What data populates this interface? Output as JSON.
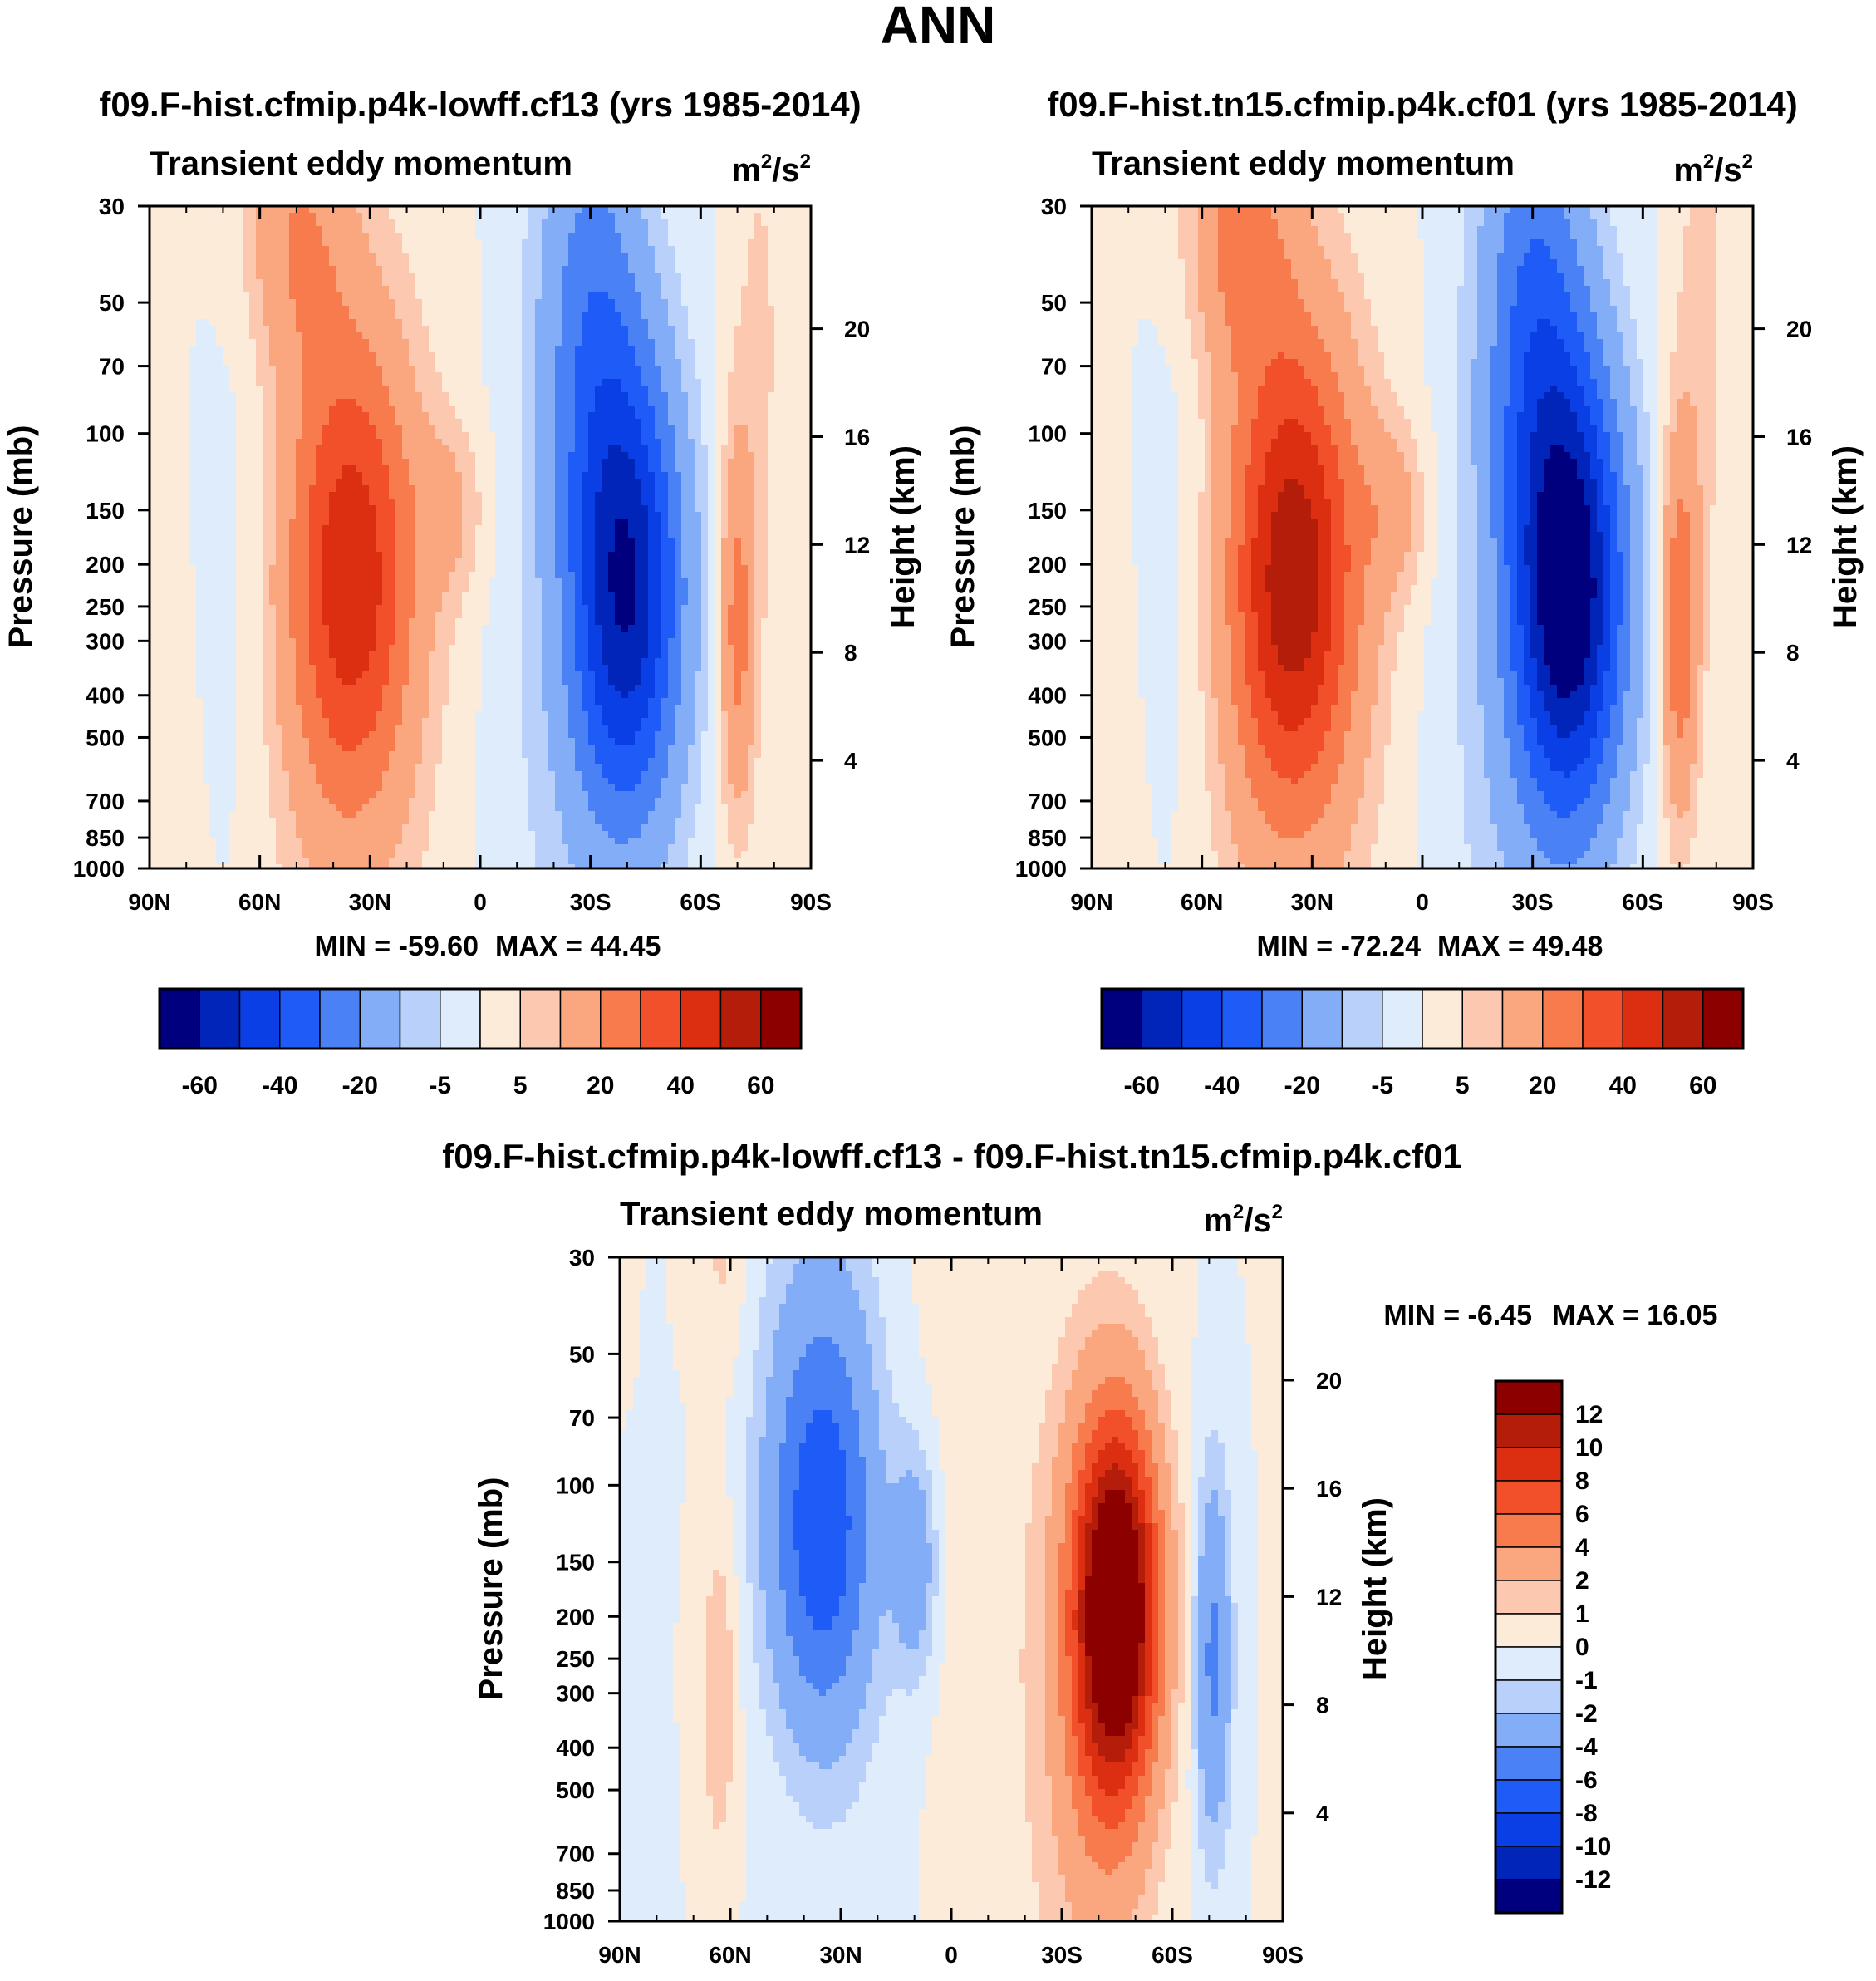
{
  "title": "ANN",
  "colors": {
    "levels": [
      "#00007f",
      "#0025b8",
      "#0a3fe6",
      "#1f5cf7",
      "#4a82f6",
      "#84adf7",
      "#b8d0fa",
      "#deecfb",
      "#fdebd9",
      "#fcc9b0",
      "#faa67f",
      "#f77b4d",
      "#f1502a",
      "#dc2e10",
      "#b31d0a",
      "#8c0000"
    ]
  },
  "chart_data": [
    {
      "type": "contour",
      "case_title": "f09.F-hist.cfmip.p4k-lowff.cf13 (yrs 1985-2014)",
      "variable": "Transient eddy momentum",
      "units_base": "m",
      "units_exp1": "2",
      "units_mid": "/s",
      "units_exp2": "2",
      "ylabel": "Pressure (mb)",
      "y2label": "Height (km)",
      "x_ticks": [
        "90N",
        "60N",
        "30N",
        "0",
        "30S",
        "60S",
        "90S"
      ],
      "y_ticks": [
        "30",
        "50",
        "70",
        "100",
        "150",
        "200",
        "250",
        "300",
        "400",
        "500",
        "700",
        "850",
        "1000"
      ],
      "y2_ticks": [
        "20",
        "16",
        "12",
        "8",
        "4"
      ],
      "min_label": "MIN = -59.60",
      "max_label": "MAX =  44.45",
      "min": -59.6,
      "max": 44.45,
      "colorbar_ticks": [
        "-60",
        "-40",
        "-20",
        "-5",
        "5",
        "20",
        "40",
        "60"
      ]
    },
    {
      "type": "contour",
      "case_title": "f09.F-hist.tn15.cfmip.p4k.cf01 (yrs 1985-2014)",
      "variable": "Transient eddy momentum",
      "units_base": "m",
      "units_exp1": "2",
      "units_mid": "/s",
      "units_exp2": "2",
      "ylabel": "Pressure (mb)",
      "y2label": "Height (km)",
      "x_ticks": [
        "90N",
        "60N",
        "30N",
        "0",
        "30S",
        "60S",
        "90S"
      ],
      "y_ticks": [
        "30",
        "50",
        "70",
        "100",
        "150",
        "200",
        "250",
        "300",
        "400",
        "500",
        "700",
        "850",
        "1000"
      ],
      "y2_ticks": [
        "20",
        "16",
        "12",
        "8",
        "4"
      ],
      "min_label": "MIN = -72.24",
      "max_label": "MAX =  49.48",
      "min": -72.24,
      "max": 49.48,
      "colorbar_ticks": [
        "-60",
        "-40",
        "-20",
        "-5",
        "5",
        "20",
        "40",
        "60"
      ]
    },
    {
      "type": "contour",
      "case_title": "f09.F-hist.cfmip.p4k-lowff.cf13 - f09.F-hist.tn15.cfmip.p4k.cf01",
      "variable": "Transient eddy momentum",
      "units_base": "m",
      "units_exp1": "2",
      "units_mid": "/s",
      "units_exp2": "2",
      "ylabel": "Pressure (mb)",
      "y2label": "Height (km)",
      "x_ticks": [
        "90N",
        "60N",
        "30N",
        "0",
        "30S",
        "60S",
        "90S"
      ],
      "y_ticks": [
        "30",
        "50",
        "70",
        "100",
        "150",
        "200",
        "250",
        "300",
        "400",
        "500",
        "700",
        "850",
        "1000"
      ],
      "y2_ticks": [
        "20",
        "16",
        "12",
        "8",
        "4"
      ],
      "min_label": "MIN =  -6.45",
      "max_label": "MAX =  16.05",
      "min": -6.45,
      "max": 16.05,
      "colorbar_ticks": [
        "12",
        "10",
        "8",
        "6",
        "4",
        "2",
        "1",
        "0",
        "-1",
        "-2",
        "-4",
        "-6",
        "-8",
        "-10",
        "-12"
      ]
    }
  ]
}
